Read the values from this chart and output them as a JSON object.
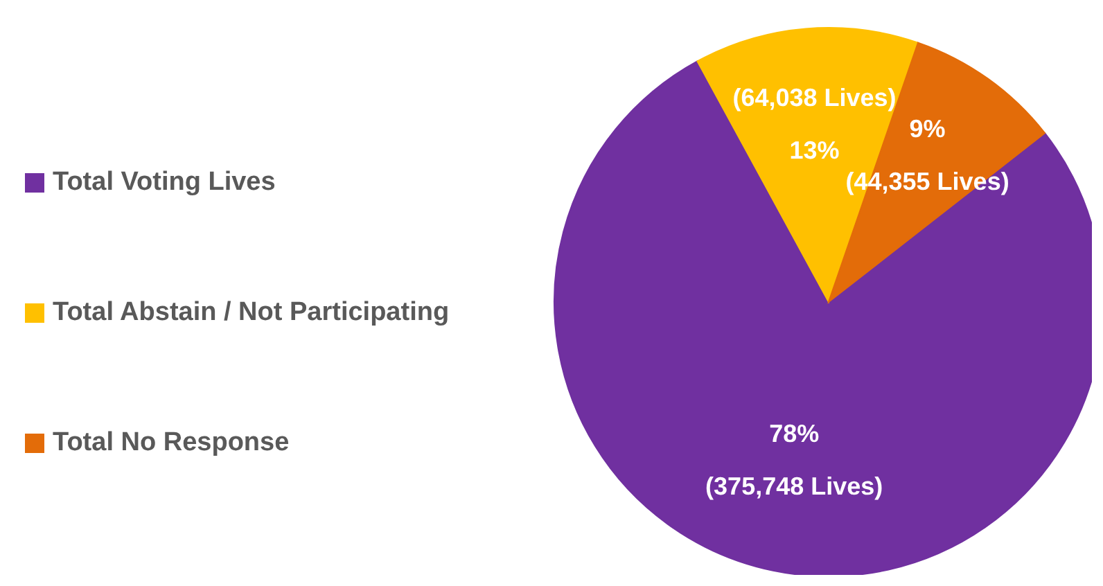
{
  "chart_data": {
    "type": "pie",
    "categories": [
      "Total Voting Lives",
      "Total Abstain / Not Participating",
      "Total No Response"
    ],
    "values": [
      375748,
      64038,
      44355
    ],
    "colors": [
      "#7030a0",
      "#ffc000",
      "#e36c09"
    ],
    "value_labels": [
      "78%\n(375,748 Lives)",
      "(64,038 Lives)\n13%",
      "9%\n(44,355 Lives)"
    ],
    "legend": "left"
  }
}
